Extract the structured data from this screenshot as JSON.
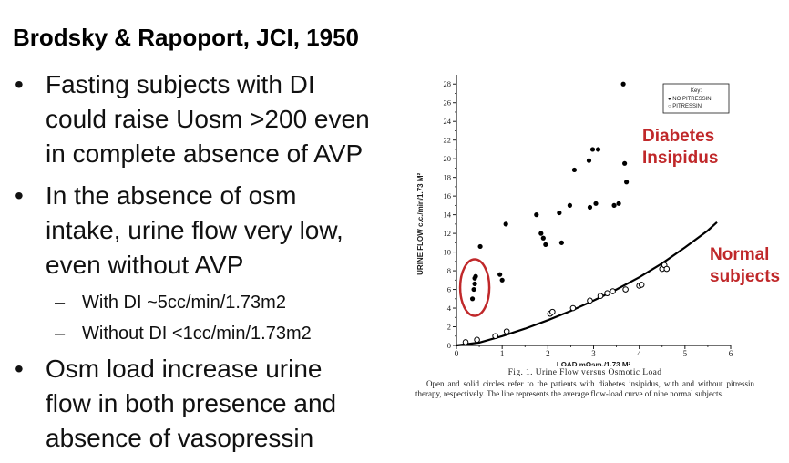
{
  "slide": {
    "heading": "Brodsky & Rapoport, JCI, 1950",
    "bullets": [
      {
        "lines": [
          "Fasting subjects with DI",
          "could raise Uosm >200 even",
          "in complete absence of AVP"
        ]
      },
      {
        "lines": [
          "In the absence of osm",
          "intake, urine flow very low,",
          "even without AVP"
        ],
        "sub": [
          "With DI ~5cc/min/1.73m2",
          "Without DI <1cc/min/1.73m2"
        ]
      },
      {
        "lines": [
          "Osm load increase urine",
          "flow in both presence and",
          "absence of vasopressin"
        ]
      }
    ],
    "bullet_glyph": "•",
    "sub_glyph": "–"
  },
  "annotations": {
    "di": [
      "Diabetes",
      "Insipidus"
    ],
    "normal": [
      "Normal",
      "subjects"
    ],
    "color": "#c0282a",
    "circle_color": "#c0282a"
  },
  "caption": {
    "title": "Fig. 1. Urine Flow versus Osmotic Load",
    "text": "Open and solid circles refer to the patients with diabetes insipidus, with and without pitressin therapy, respectively. The line represents the average flow-load curve of nine normal subjects."
  },
  "chart_data": {
    "type": "scatter",
    "xlabel": "LOAD mOsm./1.73 M²",
    "ylabel": "URINE FLOW c.c./min/1.73 M²",
    "xlim": [
      0,
      6
    ],
    "ylim": [
      0,
      29
    ],
    "x_ticks": [
      0,
      1,
      2,
      3,
      4,
      5,
      6
    ],
    "y_ticks": [
      0,
      2,
      4,
      6,
      8,
      10,
      12,
      14,
      16,
      18,
      20,
      22,
      24,
      26,
      28
    ],
    "legend": {
      "title": "Key:",
      "items": [
        "● NO PITRESSIN",
        "○ PITRESSIN"
      ],
      "position": "top-right"
    },
    "series": [
      {
        "name": "NO PITRESSIN",
        "marker": "filled",
        "points": [
          [
            0.35,
            5.0
          ],
          [
            0.38,
            6.0
          ],
          [
            0.4,
            6.6
          ],
          [
            0.4,
            7.2
          ],
          [
            0.42,
            7.4
          ],
          [
            0.52,
            10.6
          ],
          [
            0.95,
            7.6
          ],
          [
            1.0,
            7.0
          ],
          [
            1.08,
            13.0
          ],
          [
            1.75,
            14.0
          ],
          [
            1.85,
            12.0
          ],
          [
            1.9,
            11.5
          ],
          [
            1.95,
            10.8
          ],
          [
            2.25,
            14.2
          ],
          [
            2.3,
            11.0
          ],
          [
            2.48,
            15.0
          ],
          [
            2.58,
            18.8
          ],
          [
            2.9,
            19.8
          ],
          [
            2.92,
            14.8
          ],
          [
            2.98,
            21.0
          ],
          [
            3.05,
            15.2
          ],
          [
            3.1,
            21.0
          ],
          [
            3.45,
            15.0
          ],
          [
            3.55,
            15.2
          ],
          [
            3.65,
            28.0
          ],
          [
            3.68,
            19.5
          ],
          [
            3.72,
            17.5
          ]
        ]
      },
      {
        "name": "PITRESSIN",
        "marker": "open",
        "points": [
          [
            0.2,
            0.35
          ],
          [
            0.45,
            0.6
          ],
          [
            0.85,
            1.0
          ],
          [
            1.1,
            1.5
          ],
          [
            2.05,
            3.4
          ],
          [
            2.1,
            3.6
          ],
          [
            2.55,
            4.0
          ],
          [
            2.92,
            4.8
          ],
          [
            3.15,
            5.3
          ],
          [
            3.3,
            5.6
          ],
          [
            3.42,
            5.8
          ],
          [
            3.7,
            6.0
          ],
          [
            4.0,
            6.4
          ],
          [
            4.05,
            6.5
          ],
          [
            4.5,
            8.2
          ],
          [
            4.55,
            8.6
          ],
          [
            4.6,
            8.2
          ]
        ]
      },
      {
        "name": "normal curve",
        "marker": "line",
        "points": [
          [
            0,
            0
          ],
          [
            0.5,
            0.3
          ],
          [
            1,
            1.0
          ],
          [
            1.5,
            1.8
          ],
          [
            2,
            2.7
          ],
          [
            2.5,
            3.7
          ],
          [
            3,
            4.8
          ],
          [
            3.5,
            6.0
          ],
          [
            4,
            7.3
          ],
          [
            4.5,
            8.8
          ],
          [
            5,
            10.5
          ],
          [
            5.5,
            12.3
          ],
          [
            5.7,
            13.2
          ]
        ]
      }
    ]
  }
}
